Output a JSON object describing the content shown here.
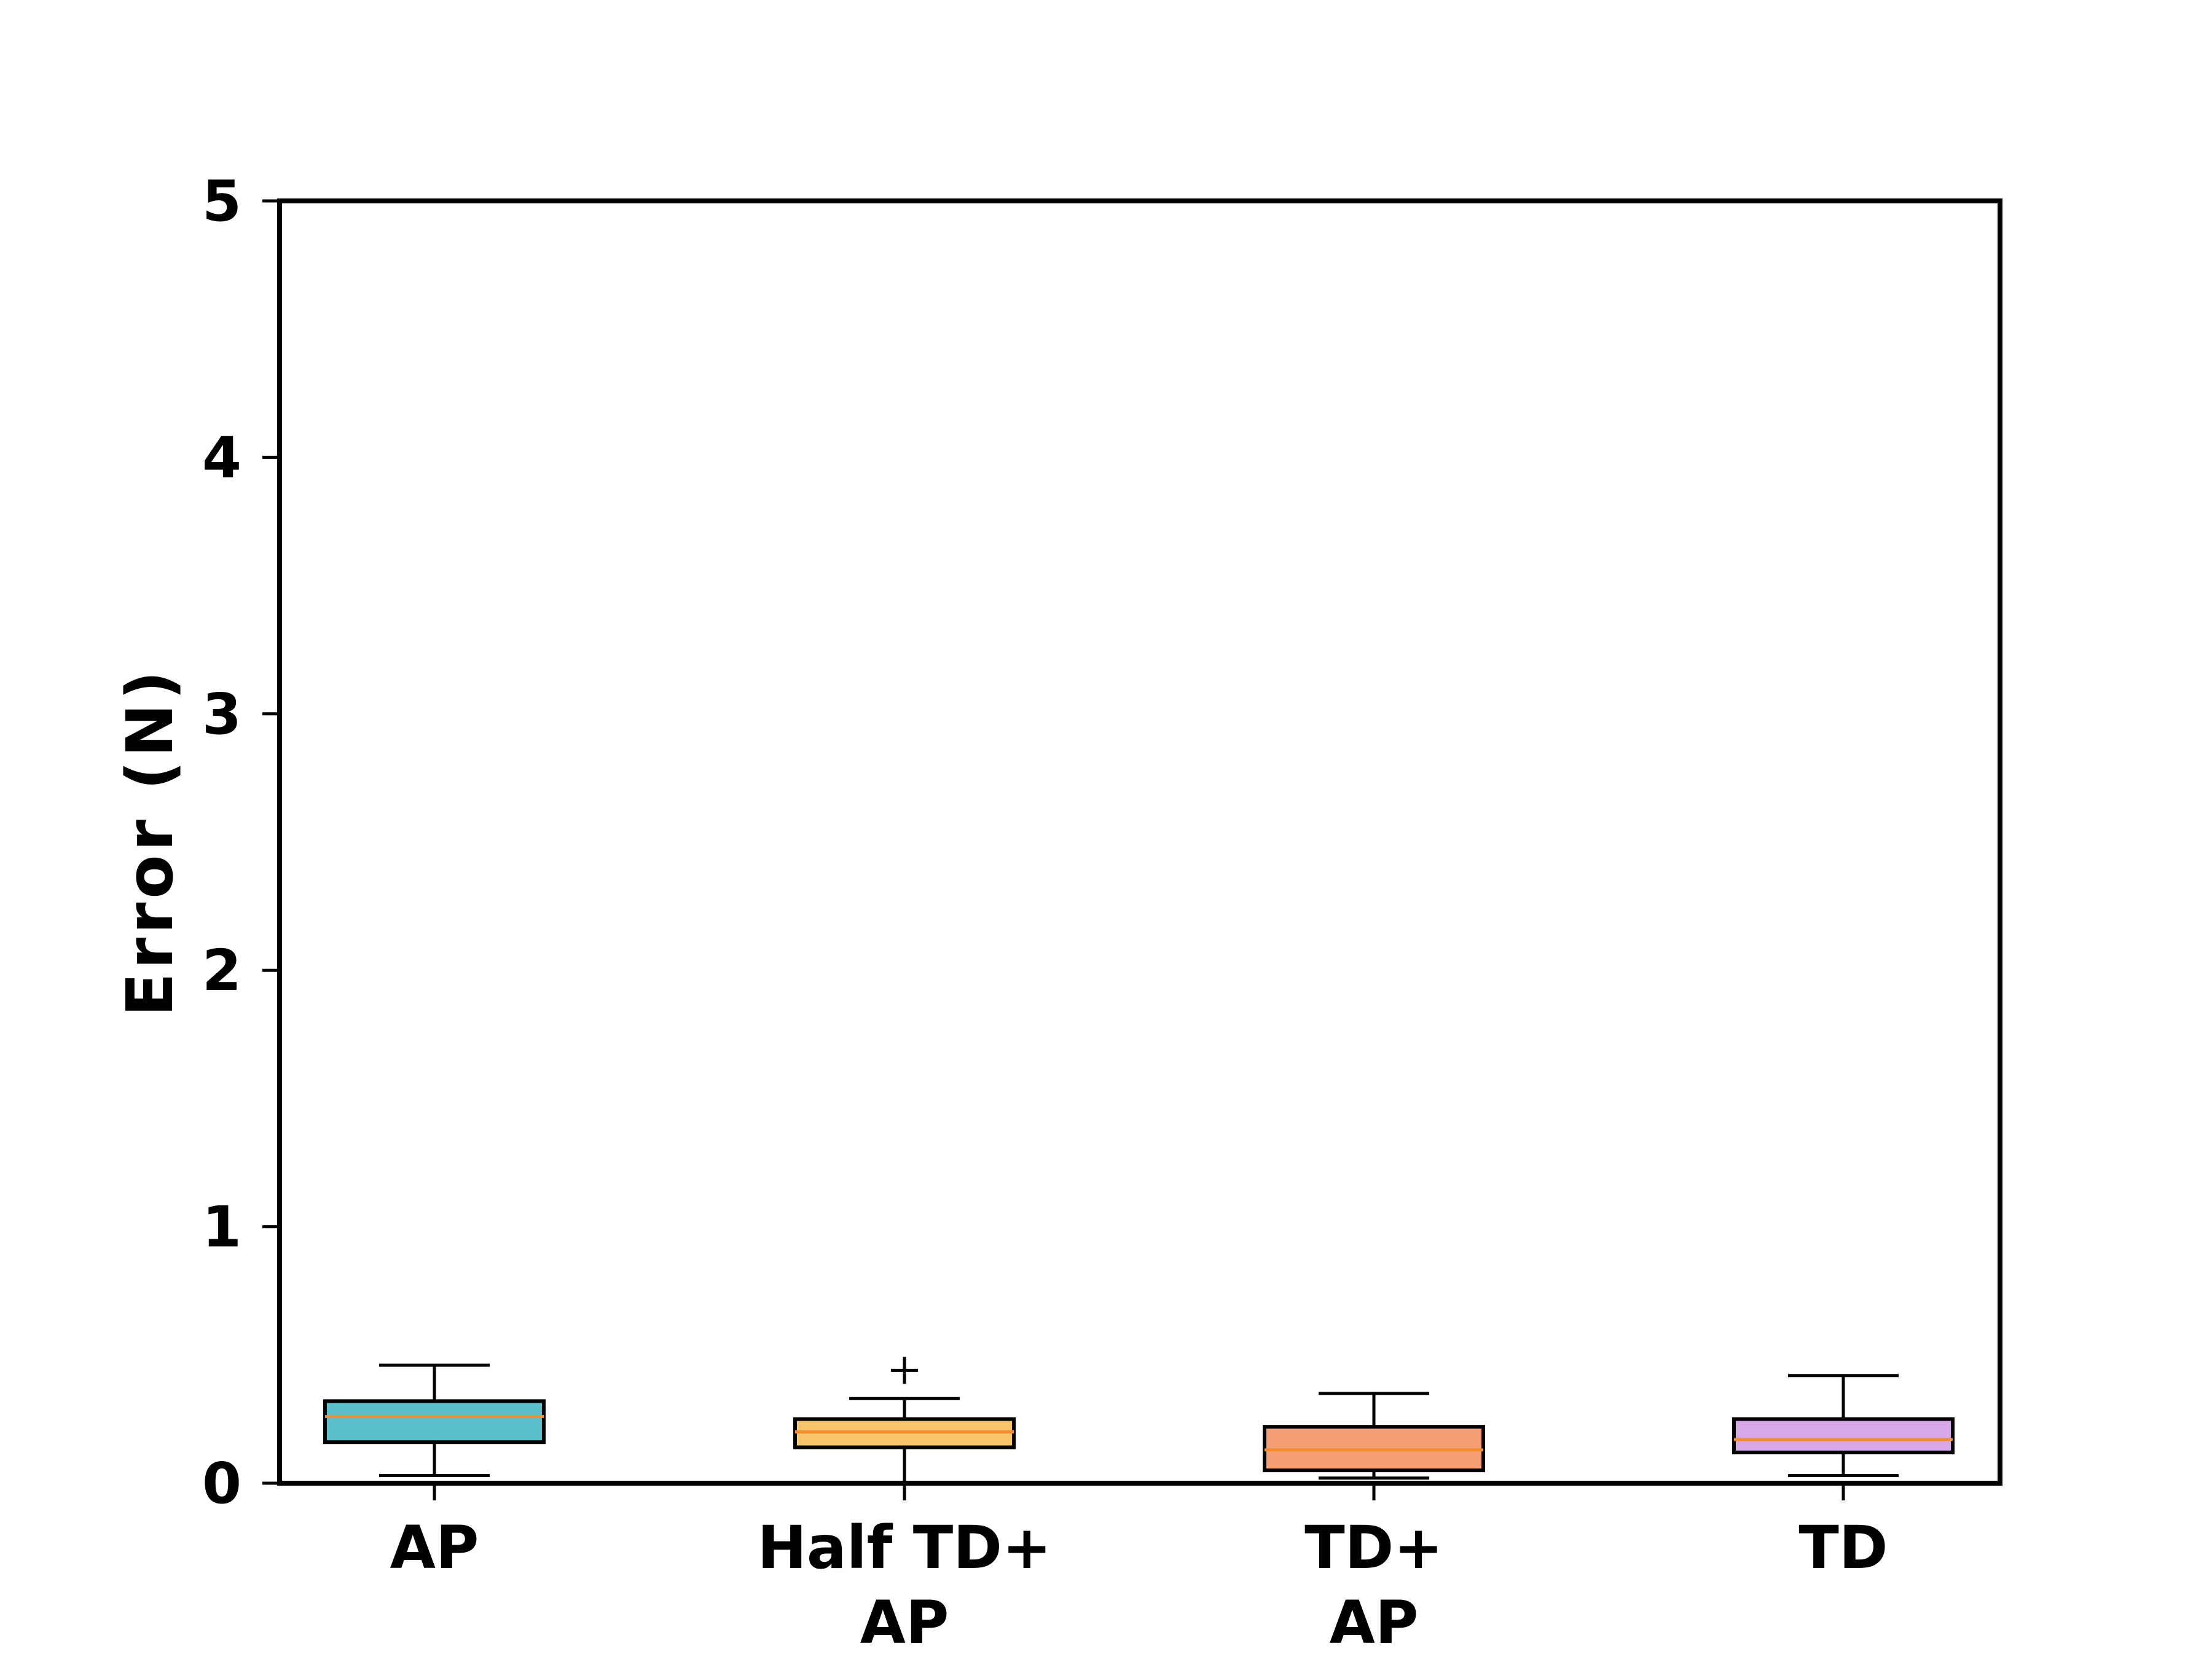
{
  "chart_data": {
    "type": "box",
    "ylabel": "Error (N)",
    "ylim": [
      0,
      5
    ],
    "yticks": [
      "0",
      "1",
      "2",
      "3",
      "4",
      "5"
    ],
    "categories": [
      [
        "AP"
      ],
      [
        "Half TD+",
        "AP"
      ],
      [
        "TD+",
        "AP"
      ],
      [
        "TD"
      ]
    ],
    "boxes": [
      {
        "category": "AP",
        "color": "#5bc0c9",
        "whisker_low": 0.03,
        "q1": 0.16,
        "median": 0.26,
        "q3": 0.32,
        "whisker_high": 0.46,
        "outliers": []
      },
      {
        "category": "Half TD+ AP",
        "color": "#f9c56b",
        "whisker_low": 0.0,
        "q1": 0.14,
        "median": 0.2,
        "q3": 0.25,
        "whisker_high": 0.33,
        "outliers": [
          0.44
        ]
      },
      {
        "category": "TD+ AP",
        "color": "#f79f72",
        "whisker_low": 0.02,
        "q1": 0.05,
        "median": 0.13,
        "q3": 0.22,
        "whisker_high": 0.35,
        "outliers": []
      },
      {
        "category": "TD",
        "color": "#d8a7e8",
        "whisker_low": 0.03,
        "q1": 0.12,
        "median": 0.17,
        "q3": 0.25,
        "whisker_high": 0.42,
        "outliers": []
      }
    ],
    "median_color": "#f28e2b",
    "grid": false,
    "legend": "none"
  }
}
